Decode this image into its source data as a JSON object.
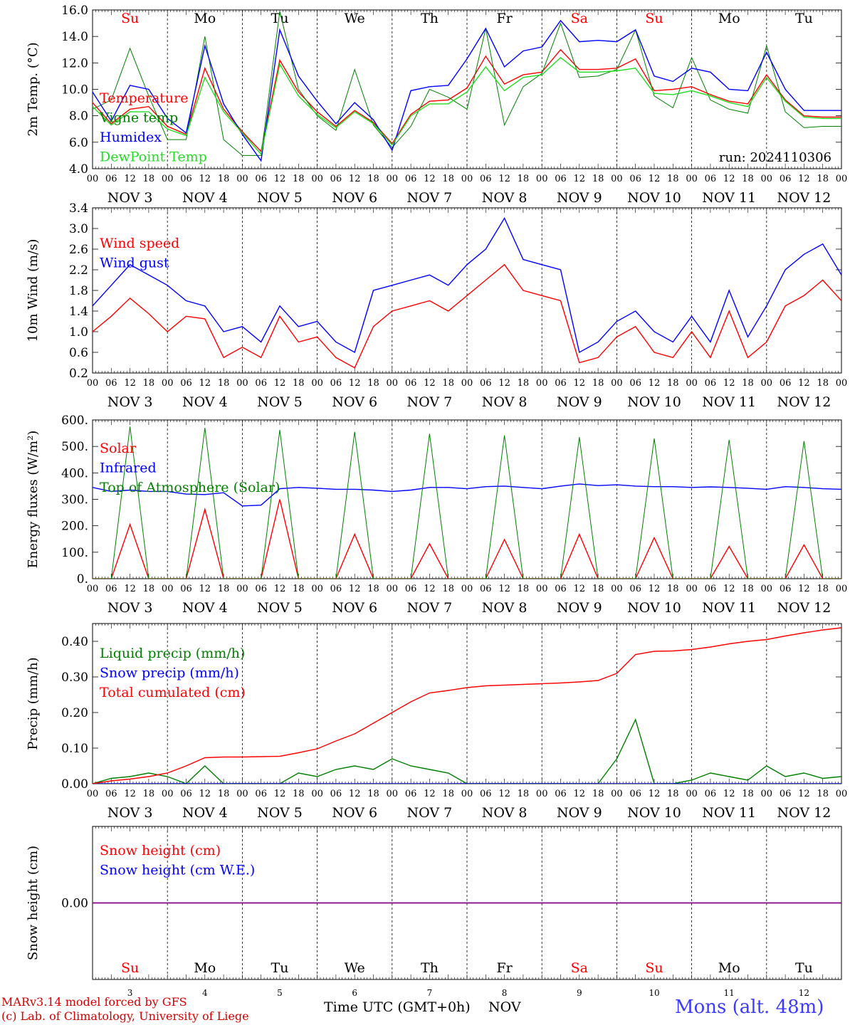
{
  "footer": {
    "model": "MARv3.14 model forced by GFS",
    "credit": "(c) Lab. of Climatology, University of Liege",
    "xtitle": "Time UTC (GMT+0h)",
    "xunit": "NOV",
    "station": "Mons (alt. 48m)"
  },
  "colors": {
    "red": "#ff0000",
    "green": "#008000",
    "blue": "#0000ff",
    "lightgreen": "#22dd22",
    "purple": "#800080",
    "weekend": "#ff0000"
  },
  "time_axis": {
    "hour_labels": [
      "00",
      "06",
      "12",
      "18"
    ],
    "day_labels": [
      "NOV  3",
      "NOV  4",
      "NOV  5",
      "NOV  6",
      "NOV  7",
      "NOV  8",
      "NOV  9",
      "NOV 10",
      "NOV 11",
      "NOV 12"
    ],
    "weekdays": [
      "Su",
      "Mo",
      "Tu",
      "We",
      "Th",
      "Fr",
      "Sa",
      "Su",
      "Mo",
      "Tu"
    ],
    "weekend_flags": [
      true,
      false,
      false,
      false,
      false,
      false,
      true,
      true,
      false,
      false
    ],
    "day_numbers": [
      "3",
      "4",
      "5",
      "6",
      "7",
      "8",
      "9",
      "10",
      "11",
      "12"
    ],
    "days": 10
  },
  "chart_data": [
    {
      "type": "line",
      "ylabel": "2m Temp. (°C)",
      "ylim": [
        4.0,
        16.0
      ],
      "yticks": [
        "4.0",
        "6.0",
        "8.0",
        "10.0",
        "12.0",
        "14.0",
        "16.0"
      ],
      "annotation": "run: 2024110306",
      "show_weekdays_top": true,
      "x_hours": [
        0,
        6,
        12,
        18,
        24,
        30,
        36,
        42,
        48,
        54,
        60,
        66,
        72,
        78,
        84,
        90,
        96,
        102,
        108,
        114,
        120,
        126,
        132,
        138,
        144,
        150,
        156,
        162,
        168,
        174,
        180,
        186,
        192,
        198,
        204,
        210,
        216,
        222,
        228,
        234,
        240
      ],
      "series": [
        {
          "name": "Temperature",
          "color": "red",
          "values": [
            9.0,
            7.4,
            8.5,
            8.7,
            7.2,
            6.6,
            11.6,
            8.5,
            6.8,
            5.3,
            12.2,
            9.8,
            8.3,
            7.2,
            8.4,
            7.5,
            5.9,
            8.1,
            9.1,
            9.2,
            10.1,
            12.5,
            10.4,
            11.1,
            11.3,
            13.0,
            11.5,
            11.5,
            11.6,
            12.3,
            9.9,
            10.0,
            10.2,
            9.6,
            9.1,
            8.9,
            11.1,
            9.2,
            8.0,
            7.9,
            7.9
          ]
        },
        {
          "name": "Vigne temp",
          "color": "green",
          "values": [
            8.5,
            9.2,
            13.1,
            9.5,
            6.2,
            6.2,
            14.0,
            6.2,
            5.0,
            5.0,
            15.9,
            10.0,
            8.0,
            6.9,
            11.5,
            7.3,
            5.6,
            7.2,
            10.0,
            9.4,
            8.5,
            14.6,
            7.3,
            10.2,
            11.2,
            15.0,
            10.9,
            11.0,
            11.5,
            14.5,
            9.5,
            8.6,
            12.4,
            9.2,
            8.5,
            8.2,
            13.3,
            8.3,
            7.1,
            7.2,
            7.2
          ]
        },
        {
          "name": "Humidex",
          "color": "blue",
          "values": [
            9.8,
            7.6,
            10.3,
            10.0,
            7.8,
            6.7,
            13.3,
            8.9,
            6.6,
            4.6,
            14.5,
            11.0,
            9.1,
            7.4,
            9.0,
            7.7,
            5.4,
            9.9,
            10.2,
            10.3,
            12.3,
            14.6,
            11.7,
            12.9,
            13.2,
            15.2,
            13.6,
            13.7,
            13.6,
            14.5,
            11.0,
            10.6,
            11.6,
            11.3,
            10.0,
            9.9,
            12.8,
            10.0,
            8.4,
            8.4,
            8.4
          ]
        },
        {
          "name": "DewPoint Temp",
          "color": "lightgreen",
          "values": [
            8.7,
            7.3,
            8.3,
            8.3,
            7.0,
            6.5,
            10.9,
            8.3,
            6.7,
            5.1,
            11.9,
            9.5,
            8.1,
            7.1,
            8.3,
            7.4,
            5.8,
            8.0,
            8.9,
            8.9,
            9.8,
            11.7,
            9.9,
            10.9,
            11.1,
            12.4,
            11.3,
            11.3,
            11.4,
            11.6,
            9.7,
            9.6,
            9.9,
            9.5,
            9.0,
            8.7,
            10.9,
            9.1,
            7.9,
            7.8,
            7.8
          ]
        }
      ]
    },
    {
      "type": "line",
      "ylabel": "10m Wind (m/s)",
      "ylim": [
        0.2,
        3.4
      ],
      "yticks": [
        "0.2",
        "0.6",
        "1.0",
        "1.4",
        "1.8",
        "2.2",
        "2.6",
        "3.0",
        "3.4"
      ],
      "x_hours": [
        0,
        6,
        12,
        18,
        24,
        30,
        36,
        42,
        48,
        54,
        60,
        66,
        72,
        78,
        84,
        90,
        96,
        102,
        108,
        114,
        120,
        126,
        132,
        138,
        144,
        150,
        156,
        162,
        168,
        174,
        180,
        186,
        192,
        198,
        204,
        210,
        216,
        222,
        228,
        234,
        240
      ],
      "series": [
        {
          "name": "Wind speed",
          "color": "red",
          "values": [
            1.0,
            1.3,
            1.65,
            1.35,
            1.0,
            1.3,
            1.25,
            0.5,
            0.7,
            0.5,
            1.3,
            0.8,
            0.9,
            0.5,
            0.3,
            1.1,
            1.4,
            1.5,
            1.6,
            1.4,
            1.7,
            2.0,
            2.3,
            1.8,
            1.7,
            1.6,
            0.4,
            0.5,
            0.9,
            1.1,
            0.6,
            0.5,
            1.0,
            0.5,
            1.4,
            0.5,
            0.8,
            1.5,
            1.7,
            2.0,
            1.6
          ]
        },
        {
          "name": "Wind gust",
          "color": "blue",
          "values": [
            1.5,
            1.9,
            2.3,
            2.1,
            1.9,
            1.6,
            1.5,
            1.0,
            1.1,
            0.8,
            1.5,
            1.1,
            1.2,
            0.8,
            0.6,
            1.8,
            1.9,
            2.0,
            2.1,
            1.9,
            2.3,
            2.6,
            3.2,
            2.4,
            2.3,
            2.2,
            0.6,
            0.8,
            1.2,
            1.4,
            1.0,
            0.8,
            1.3,
            0.8,
            1.8,
            0.9,
            1.5,
            2.2,
            2.5,
            2.7,
            2.1
          ]
        }
      ]
    },
    {
      "type": "line",
      "ylabel": "Energy fluxes (W/m²)",
      "ylim": [
        0,
        600
      ],
      "yticks": [
        "0.",
        "100.",
        "200.",
        "300.",
        "400.",
        "500.",
        "600."
      ],
      "x_hours": [
        0,
        6,
        12,
        18,
        24,
        30,
        36,
        42,
        48,
        54,
        60,
        66,
        72,
        78,
        84,
        90,
        96,
        102,
        108,
        114,
        120,
        126,
        132,
        138,
        144,
        150,
        156,
        162,
        168,
        174,
        180,
        186,
        192,
        198,
        204,
        210,
        216,
        222,
        228,
        234,
        240
      ],
      "series": [
        {
          "name": "Solar",
          "color": "red",
          "values": [
            0,
            0,
            205,
            0,
            0,
            0,
            262,
            0,
            0,
            0,
            300,
            0,
            0,
            0,
            168,
            0,
            0,
            0,
            132,
            0,
            0,
            0,
            148,
            0,
            0,
            0,
            168,
            0,
            0,
            0,
            155,
            0,
            0,
            0,
            122,
            0,
            0,
            0,
            128,
            0,
            0
          ]
        },
        {
          "name": "Infrared",
          "color": "blue",
          "values": [
            345,
            330,
            335,
            330,
            330,
            320,
            318,
            325,
            275,
            278,
            340,
            345,
            342,
            338,
            338,
            335,
            330,
            335,
            345,
            345,
            340,
            348,
            350,
            345,
            340,
            350,
            358,
            352,
            355,
            350,
            348,
            348,
            345,
            347,
            345,
            342,
            338,
            348,
            345,
            340,
            338
          ]
        },
        {
          "name": "Top of Atmosphere (Solar)",
          "color": "green",
          "values": [
            0,
            0,
            575,
            0,
            0,
            0,
            570,
            0,
            0,
            0,
            562,
            0,
            0,
            0,
            555,
            0,
            0,
            0,
            548,
            0,
            0,
            0,
            542,
            0,
            0,
            0,
            535,
            0,
            0,
            0,
            530,
            0,
            0,
            0,
            525,
            0,
            0,
            0,
            520,
            0,
            0
          ]
        }
      ]
    },
    {
      "type": "line",
      "ylabel": "Precip (mm/h)",
      "ylim": [
        0.0,
        0.45
      ],
      "yticks": [
        "0.00",
        "0.10",
        "0.20",
        "0.30",
        "0.40"
      ],
      "x_hours": [
        0,
        6,
        12,
        18,
        24,
        30,
        36,
        42,
        48,
        54,
        60,
        66,
        72,
        78,
        84,
        90,
        96,
        102,
        108,
        114,
        120,
        126,
        132,
        138,
        144,
        150,
        156,
        162,
        168,
        174,
        180,
        186,
        192,
        198,
        204,
        210,
        216,
        222,
        228,
        234,
        240
      ],
      "series": [
        {
          "name": "Liquid precip (mm/h)",
          "color": "green",
          "values": [
            0.0,
            0.015,
            0.02,
            0.03,
            0.02,
            0.0,
            0.05,
            0.0,
            0.0,
            0.0,
            0.0,
            0.03,
            0.02,
            0.04,
            0.05,
            0.04,
            0.07,
            0.05,
            0.04,
            0.03,
            0.0,
            0.0,
            0.0,
            0.0,
            0.0,
            0.0,
            0.0,
            0.0,
            0.07,
            0.18,
            0.0,
            0.0,
            0.01,
            0.03,
            0.02,
            0.01,
            0.05,
            0.02,
            0.03,
            0.015,
            0.02
          ]
        },
        {
          "name": "Snow precip (mm/h)",
          "color": "blue",
          "values": [
            0,
            0,
            0,
            0,
            0,
            0,
            0,
            0,
            0,
            0,
            0,
            0,
            0,
            0,
            0,
            0,
            0,
            0,
            0,
            0,
            0,
            0,
            0,
            0,
            0,
            0,
            0,
            0,
            0,
            0,
            0,
            0,
            0,
            0,
            0,
            0,
            0,
            0,
            0,
            0,
            0
          ]
        },
        {
          "name": "Total cumulated (cm)",
          "color": "red",
          "values": [
            0.0,
            0.008,
            0.013,
            0.02,
            0.03,
            0.05,
            0.073,
            0.075,
            0.075,
            0.076,
            0.077,
            0.087,
            0.098,
            0.12,
            0.14,
            0.17,
            0.2,
            0.23,
            0.255,
            0.262,
            0.27,
            0.275,
            0.277,
            0.279,
            0.281,
            0.283,
            0.286,
            0.29,
            0.31,
            0.363,
            0.372,
            0.373,
            0.377,
            0.384,
            0.393,
            0.4,
            0.405,
            0.415,
            0.424,
            0.432,
            0.438
          ]
        }
      ]
    },
    {
      "type": "line",
      "ylabel": "Snow height (cm)",
      "ylim": [
        -1.0,
        1.0
      ],
      "yticks": [
        "0.00"
      ],
      "show_weekdays_bottom": true,
      "x_hours": [
        0,
        240
      ],
      "series": [
        {
          "name": "Snow height (cm)",
          "color": "red",
          "values": [
            0,
            0
          ]
        },
        {
          "name": "Snow height (cm W.E.)",
          "color": "blue",
          "values": [
            0,
            0
          ]
        }
      ]
    }
  ]
}
